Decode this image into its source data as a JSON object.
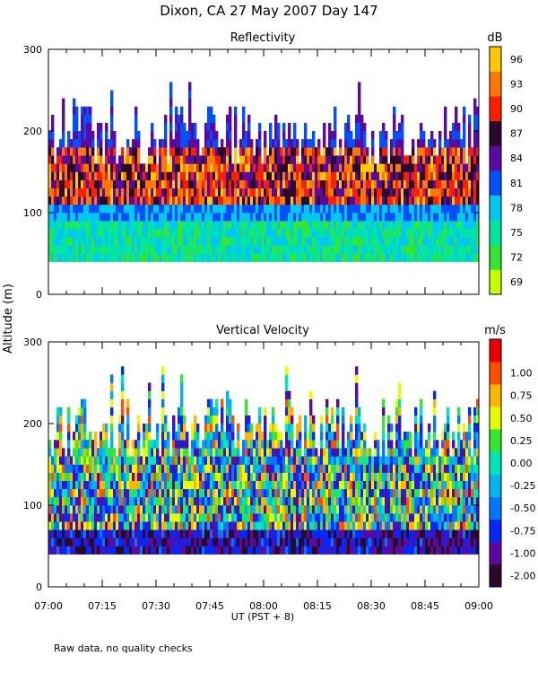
{
  "figure": {
    "title": "Dixon, CA 27 May 2007  Day 147",
    "y_label": "Altitude (m)",
    "x_label": "UT  (PST + 8)",
    "footnote": "Raw data, no quality checks"
  },
  "chart_data": [
    {
      "type": "heatmap",
      "title": "Reflectivity",
      "ylim": [
        0,
        300
      ],
      "y_ticks": [
        "0",
        "100",
        "200",
        "300"
      ],
      "x_range": [
        "07:00",
        "09:00"
      ],
      "data_altitude_range_m": [
        40,
        300
      ],
      "colorbar": {
        "unit": "dB",
        "ticks": [
          "69",
          "72",
          "75",
          "78",
          "81",
          "84",
          "87",
          "90",
          "93",
          "96"
        ],
        "colors": [
          "#c8ff00",
          "#32e632",
          "#00e6a0",
          "#00c8f0",
          "#0050ff",
          "#5a0aa0",
          "#2a0a2a",
          "#ff1e00",
          "#ff7800",
          "#ffc800"
        ]
      }
    },
    {
      "type": "heatmap",
      "title": "Vertical Velocity",
      "ylim": [
        0,
        300
      ],
      "y_ticks": [
        "0",
        "100",
        "200",
        "300"
      ],
      "x_range": [
        "07:00",
        "09:00"
      ],
      "data_altitude_range_m": [
        40,
        280
      ],
      "colorbar": {
        "unit": "m/s",
        "ticks": [
          "-2.00",
          "-1.00",
          "-0.75",
          "-0.50",
          "-0.25",
          "0.00",
          "0.25",
          "0.50",
          "0.75",
          "1.00"
        ],
        "colors": [
          "#2a0a2a",
          "#5a0aa0",
          "#0028ff",
          "#0078ff",
          "#00b4f0",
          "#00e6b4",
          "#32e632",
          "#e6ff00",
          "#ffb400",
          "#ff5000",
          "#e60000"
        ]
      }
    }
  ],
  "x_ticks": [
    "07:00",
    "07:15",
    "07:30",
    "07:45",
    "08:00",
    "08:15",
    "08:30",
    "08:45",
    "09:00"
  ]
}
